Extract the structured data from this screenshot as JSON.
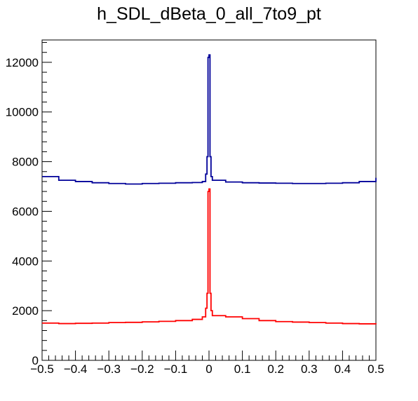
{
  "chart_data": {
    "type": "line",
    "title": "h_SDL_dBeta_0_all_7to9_pt",
    "xlabel": "",
    "ylabel": "",
    "xlim": [
      -0.5,
      0.5
    ],
    "ylim": [
      0,
      12900
    ],
    "x_ticks": [
      -0.5,
      -0.4,
      -0.3,
      -0.2,
      -0.1,
      0,
      0.1,
      0.2,
      0.3,
      0.4,
      0.5
    ],
    "x_tick_labels": [
      "−0.5",
      "−0.4",
      "−0.3",
      "−0.2",
      "−0.1",
      "0",
      "0.1",
      "0.2",
      "0.3",
      "0.4",
      "0.5"
    ],
    "y_ticks": [
      0,
      2000,
      4000,
      6000,
      8000,
      10000,
      12000
    ],
    "y_tick_labels": [
      "0",
      "2000",
      "4000",
      "6000",
      "8000",
      "10000",
      "12000"
    ],
    "grid": false,
    "legend": "none",
    "series": [
      {
        "color": "#000099",
        "points": [
          [
            -0.5,
            7400
          ],
          [
            -0.45,
            7250
          ],
          [
            -0.4,
            7200
          ],
          [
            -0.35,
            7150
          ],
          [
            -0.3,
            7120
          ],
          [
            -0.25,
            7100
          ],
          [
            -0.2,
            7120
          ],
          [
            -0.15,
            7130
          ],
          [
            -0.1,
            7150
          ],
          [
            -0.05,
            7160
          ],
          [
            -0.02,
            7200
          ],
          [
            -0.01,
            7500
          ],
          [
            -0.006,
            8200
          ],
          [
            -0.003,
            12200
          ],
          [
            0.0,
            12300
          ],
          [
            0.003,
            8200
          ],
          [
            0.006,
            7400
          ],
          [
            0.01,
            7250
          ],
          [
            0.05,
            7180
          ],
          [
            0.1,
            7150
          ],
          [
            0.15,
            7140
          ],
          [
            0.2,
            7130
          ],
          [
            0.25,
            7120
          ],
          [
            0.3,
            7120
          ],
          [
            0.35,
            7130
          ],
          [
            0.4,
            7150
          ],
          [
            0.45,
            7200
          ],
          [
            0.5,
            7350
          ]
        ]
      },
      {
        "color": "#ff0000",
        "points": [
          [
            -0.5,
            1500
          ],
          [
            -0.45,
            1480
          ],
          [
            -0.4,
            1490
          ],
          [
            -0.35,
            1500
          ],
          [
            -0.3,
            1520
          ],
          [
            -0.25,
            1530
          ],
          [
            -0.2,
            1550
          ],
          [
            -0.15,
            1570
          ],
          [
            -0.1,
            1600
          ],
          [
            -0.05,
            1650
          ],
          [
            -0.02,
            1750
          ],
          [
            -0.01,
            2100
          ],
          [
            -0.006,
            2700
          ],
          [
            -0.003,
            6800
          ],
          [
            0.0,
            6900
          ],
          [
            0.003,
            2700
          ],
          [
            0.006,
            2000
          ],
          [
            0.01,
            1800
          ],
          [
            0.05,
            1750
          ],
          [
            0.1,
            1680
          ],
          [
            0.15,
            1600
          ],
          [
            0.2,
            1560
          ],
          [
            0.25,
            1540
          ],
          [
            0.3,
            1520
          ],
          [
            0.35,
            1500
          ],
          [
            0.4,
            1480
          ],
          [
            0.45,
            1470
          ],
          [
            0.5,
            1450
          ]
        ]
      }
    ]
  }
}
